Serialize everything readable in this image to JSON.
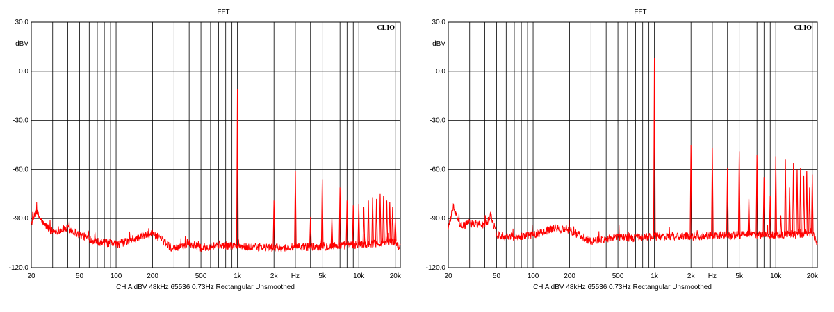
{
  "chart_data": [
    {
      "type": "line",
      "title": "FFT",
      "ylabel": "dBV",
      "xlabel": "Hz",
      "logo": "CLIO",
      "footer": "CH A   dBV   48kHz   65536   0.73Hz   Rectangular   Unsmoothed",
      "x_scale": "log",
      "xlim": [
        20,
        22000
      ],
      "ylim": [
        -120,
        30
      ],
      "grid": true,
      "y_ticks": [
        "30.0",
        "0.0",
        "-30.0",
        "-60.0",
        "-90.0",
        "-120.0"
      ],
      "x_ticks": [
        "20",
        "50",
        "100",
        "200",
        "500",
        "1k",
        "2k",
        "Hz",
        "5k",
        "10k",
        "20k"
      ],
      "line_color": "#ff0000",
      "noise_floor": [
        [
          20,
          -93
        ],
        [
          22,
          -86
        ],
        [
          25,
          -93
        ],
        [
          30,
          -98
        ],
        [
          40,
          -96
        ],
        [
          50,
          -100
        ],
        [
          70,
          -104
        ],
        [
          100,
          -106
        ],
        [
          150,
          -102
        ],
        [
          200,
          -99
        ],
        [
          300,
          -109
        ],
        [
          400,
          -105
        ],
        [
          500,
          -108
        ],
        [
          700,
          -106
        ],
        [
          1000,
          -107
        ],
        [
          2000,
          -108
        ],
        [
          5000,
          -107
        ],
        [
          10000,
          -106
        ],
        [
          20000,
          -104
        ],
        [
          22000,
          -108
        ]
      ],
      "peaks": [
        [
          1000,
          -11
        ],
        [
          2000,
          -79
        ],
        [
          3000,
          -61
        ],
        [
          4000,
          -89
        ],
        [
          5000,
          -66
        ],
        [
          6000,
          -90
        ],
        [
          7000,
          -71
        ],
        [
          8000,
          -79
        ],
        [
          9000,
          -82
        ],
        [
          10000,
          -81
        ],
        [
          11000,
          -83
        ],
        [
          12000,
          -79
        ],
        [
          13000,
          -77
        ],
        [
          14000,
          -78
        ],
        [
          15000,
          -75
        ],
        [
          16000,
          -76
        ],
        [
          17000,
          -79
        ],
        [
          18000,
          -80
        ],
        [
          19000,
          -83
        ],
        [
          20000,
          -90
        ]
      ]
    },
    {
      "type": "line",
      "title": "FFT",
      "ylabel": "dBV",
      "xlabel": "Hz",
      "logo": "CLIO",
      "footer": "CH A   dBV   48kHz   65536   0.73Hz   Rectangular   Unsmoothed",
      "x_scale": "log",
      "xlim": [
        20,
        22000
      ],
      "ylim": [
        -120,
        30
      ],
      "grid": true,
      "y_ticks": [
        "30.0",
        "0.0",
        "-30.0",
        "-60.0",
        "-90.0",
        "-120.0"
      ],
      "x_ticks": [
        "20",
        "50",
        "100",
        "200",
        "500",
        "1k",
        "2k",
        "Hz",
        "5k",
        "10k",
        "20k"
      ],
      "line_color": "#ff0000",
      "noise_floor": [
        [
          20,
          -96
        ],
        [
          22,
          -83
        ],
        [
          25,
          -95
        ],
        [
          30,
          -93
        ],
        [
          40,
          -94
        ],
        [
          45,
          -88
        ],
        [
          50,
          -100
        ],
        [
          70,
          -101
        ],
        [
          100,
          -100
        ],
        [
          150,
          -96
        ],
        [
          200,
          -97
        ],
        [
          300,
          -104
        ],
        [
          500,
          -101
        ],
        [
          700,
          -102
        ],
        [
          1000,
          -101
        ],
        [
          2000,
          -101
        ],
        [
          5000,
          -100
        ],
        [
          10000,
          -100
        ],
        [
          20000,
          -99
        ],
        [
          22000,
          -105
        ]
      ],
      "peaks": [
        [
          1000,
          8
        ],
        [
          2000,
          -45
        ],
        [
          3000,
          -47
        ],
        [
          4000,
          -59
        ],
        [
          5000,
          -49
        ],
        [
          6000,
          -78
        ],
        [
          7000,
          -51
        ],
        [
          8000,
          -65
        ],
        [
          9000,
          -76
        ],
        [
          10000,
          -52
        ],
        [
          11000,
          -88
        ],
        [
          12000,
          -54
        ],
        [
          13000,
          -71
        ],
        [
          14000,
          -56
        ],
        [
          15000,
          -60
        ],
        [
          16000,
          -59
        ],
        [
          17000,
          -64
        ],
        [
          18000,
          -61
        ],
        [
          19000,
          -71
        ],
        [
          20000,
          -63
        ]
      ]
    }
  ]
}
